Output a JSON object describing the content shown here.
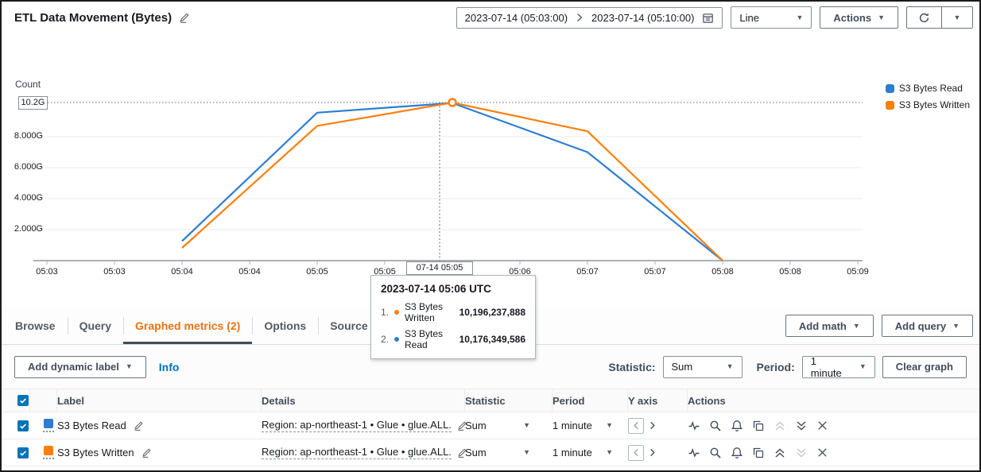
{
  "header": {
    "title": "ETL Data Movement (Bytes)",
    "time_range": {
      "from": "2023-07-14 (05:03:00)",
      "to": "2023-07-14 (05:10:00)"
    },
    "chart_type_select": "Line",
    "actions_button": "Actions"
  },
  "chart": {
    "unit_label": "Count",
    "max_value_label": "10.2G",
    "yticks": [
      {
        "label": "8.000G",
        "value": 8
      },
      {
        "label": "6.000G",
        "value": 6
      },
      {
        "label": "4.000G",
        "value": 4
      },
      {
        "label": "2.000G",
        "value": 2
      }
    ],
    "xticks": [
      "05:03",
      "05:03",
      "05:04",
      "05:04",
      "05:05",
      "05:05",
      "05:06",
      "05:06",
      "05:07",
      "05:07",
      "05:08",
      "05:08",
      "05:09"
    ],
    "legend": [
      {
        "label": "S3 Bytes Read",
        "color": "#2d7dd2"
      },
      {
        "label": "S3 Bytes Written",
        "color": "#ff7f0e"
      }
    ],
    "hover": {
      "axis_label": "07-14 05:05",
      "tooltip": {
        "title": "2023-07-14 05:06 UTC",
        "rows": [
          {
            "rank": "1.",
            "label": "S3 Bytes Written",
            "value": "10,196,237,888",
            "color": "#ff7f0e"
          },
          {
            "rank": "2.",
            "label": "S3 Bytes Read",
            "value": "10,176,349,586",
            "color": "#2d7dd2"
          }
        ]
      }
    }
  },
  "chart_data": {
    "type": "line",
    "title": "ETL Data Movement (Bytes)",
    "ylabel": "Count",
    "x": [
      "05:04",
      "05:05",
      "05:06",
      "05:07",
      "05:08"
    ],
    "series": [
      {
        "name": "S3 Bytes Read",
        "color": "#2d7dd2",
        "values_g": [
          1.26,
          9.55,
          10.176,
          7.0,
          0
        ]
      },
      {
        "name": "S3 Bytes Written",
        "color": "#ff7f0e",
        "values_g": [
          0.82,
          8.7,
          10.196,
          8.35,
          0
        ]
      }
    ],
    "ylim_g": [
      0,
      10.85
    ],
    "max_line_g": 10.2,
    "hovered_point": {
      "x": "05:06",
      "series": "S3 Bytes Written",
      "value_g": 10.196
    }
  },
  "tabs": {
    "items": [
      {
        "label": "Browse",
        "active": false
      },
      {
        "label": "Query",
        "active": false
      },
      {
        "label": "Graphed metrics (2)",
        "active": true
      },
      {
        "label": "Options",
        "active": false
      },
      {
        "label": "Source",
        "active": false
      }
    ],
    "add_math": "Add math",
    "add_query": "Add query"
  },
  "controls": {
    "add_dynamic_label": "Add dynamic label",
    "info": "Info",
    "statistic_label": "Statistic:",
    "statistic_value": "Sum",
    "period_label": "Period:",
    "period_value": "1 minute",
    "clear_graph": "Clear graph"
  },
  "table": {
    "columns": [
      "Label",
      "Details",
      "Statistic",
      "Period",
      "Y axis",
      "Actions"
    ],
    "rows": [
      {
        "color": "#2d7dd2",
        "label": "S3 Bytes Read",
        "details": "Region: ap-northeast-1 • Glue • glue.ALL.",
        "statistic": "Sum",
        "period": "1 minute",
        "move_up_enabled": false,
        "move_down_enabled": true
      },
      {
        "color": "#ff7f0e",
        "label": "S3 Bytes Written",
        "details": "Region: ap-northeast-1 • Glue • glue.ALL.",
        "statistic": "Sum",
        "period": "1 minute",
        "move_up_enabled": true,
        "move_down_enabled": false
      }
    ]
  },
  "colors": {
    "accent_orange": "#ec7211",
    "link_blue": "#0073bb",
    "series_blue": "#2d7dd2",
    "series_orange": "#ff7f0e"
  }
}
